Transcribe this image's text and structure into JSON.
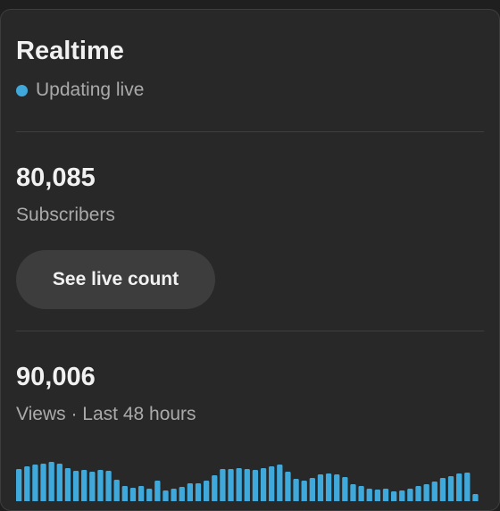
{
  "card": {
    "title": "Realtime",
    "status": "Updating live",
    "subscribers": {
      "value": "80,085",
      "label": "Subscribers",
      "button": "See live count"
    },
    "views": {
      "value": "90,006",
      "label": "Views · Last 48 hours"
    }
  },
  "chart": {
    "type": "bar",
    "color": "#3fa9dc",
    "values": [
      56,
      59,
      61,
      62,
      64,
      62,
      57,
      54,
      55,
      53,
      55,
      54,
      44,
      37,
      35,
      37,
      34,
      43,
      32,
      34,
      36,
      40,
      40,
      43,
      49,
      56,
      56,
      57,
      56,
      55,
      57,
      59,
      61,
      53,
      45,
      43,
      46,
      50,
      51,
      50,
      47,
      39,
      37,
      34,
      33,
      34,
      31,
      32,
      34,
      37,
      39,
      42,
      46,
      48,
      51,
      52,
      28
    ]
  }
}
